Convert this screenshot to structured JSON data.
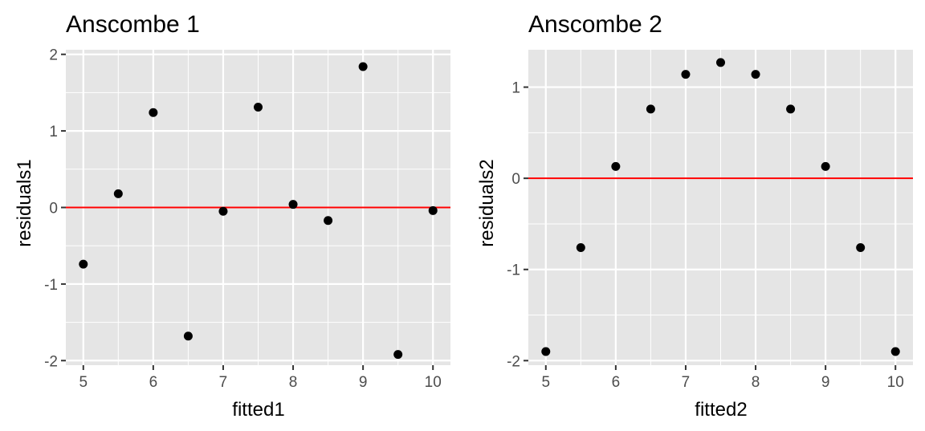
{
  "chart_data": [
    {
      "type": "scatter",
      "title": "Anscombe 1",
      "xlabel": "fitted1",
      "ylabel": "residuals1",
      "xlim": [
        4.75,
        10.25
      ],
      "ylim": [
        -2.06,
        2.06
      ],
      "x_ticks": [
        5,
        6,
        7,
        8,
        9,
        10
      ],
      "x_tick_labels": [
        "5",
        "6",
        "7",
        "8",
        "9",
        "10"
      ],
      "y_ticks": [
        -2,
        -1,
        0,
        1,
        2
      ],
      "y_tick_labels": [
        "-2",
        "-1",
        "0",
        "1",
        "2"
      ],
      "hline": 0,
      "hline_color": "#ff0000",
      "point_color": "#000000",
      "panel_background": "#e5e5e5",
      "grid": true,
      "points": [
        {
          "x": 5.0,
          "y": -0.74
        },
        {
          "x": 5.5,
          "y": 0.18
        },
        {
          "x": 6.0,
          "y": 1.24
        },
        {
          "x": 6.5,
          "y": -1.68
        },
        {
          "x": 7.0,
          "y": -0.05
        },
        {
          "x": 7.5,
          "y": 1.31
        },
        {
          "x": 8.0,
          "y": 0.04
        },
        {
          "x": 8.5,
          "y": -0.17
        },
        {
          "x": 9.0,
          "y": 1.84
        },
        {
          "x": 9.5,
          "y": -1.92
        },
        {
          "x": 10.0,
          "y": -0.04
        }
      ]
    },
    {
      "type": "scatter",
      "title": "Anscombe 2",
      "xlabel": "fitted2",
      "ylabel": "residuals2",
      "xlim": [
        4.75,
        10.25
      ],
      "ylim": [
        -2.05,
        1.41
      ],
      "x_ticks": [
        5,
        6,
        7,
        8,
        9,
        10
      ],
      "x_tick_labels": [
        "5",
        "6",
        "7",
        "8",
        "9",
        "10"
      ],
      "y_ticks": [
        -2,
        -1,
        0,
        1
      ],
      "y_tick_labels": [
        "-2",
        "-1",
        "0",
        "1"
      ],
      "hline": 0,
      "hline_color": "#ff0000",
      "point_color": "#000000",
      "panel_background": "#e5e5e5",
      "grid": true,
      "points": [
        {
          "x": 5.0,
          "y": -1.9
        },
        {
          "x": 5.5,
          "y": -0.76
        },
        {
          "x": 6.0,
          "y": 0.13
        },
        {
          "x": 6.5,
          "y": 0.76
        },
        {
          "x": 7.0,
          "y": 1.14
        },
        {
          "x": 7.5,
          "y": 1.27
        },
        {
          "x": 8.0,
          "y": 1.14
        },
        {
          "x": 8.5,
          "y": 0.76
        },
        {
          "x": 9.0,
          "y": 0.13
        },
        {
          "x": 9.5,
          "y": -0.76
        },
        {
          "x": 10.0,
          "y": -1.9
        }
      ]
    }
  ]
}
